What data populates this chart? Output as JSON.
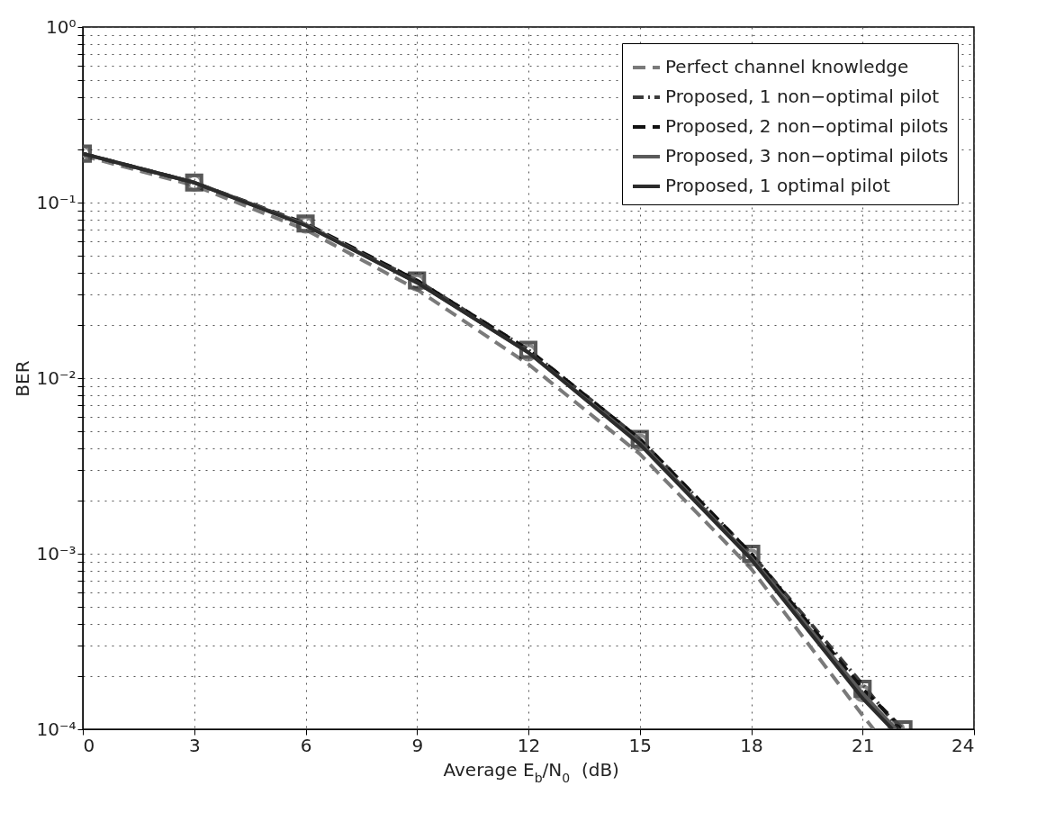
{
  "chart_data": {
    "type": "line",
    "xlabel": "Average E$_{b}$/N$_{0}$ (dB)",
    "ylabel": "BER",
    "xlim": [
      0,
      24
    ],
    "xticks": [
      0,
      3,
      6,
      9,
      12,
      15,
      18,
      21,
      24
    ],
    "ylim": [
      0.0001,
      1
    ],
    "log": "y",
    "yticks": [
      {
        "value": 0.0001,
        "label": "10⁻⁴"
      },
      {
        "value": 0.0002,
        "label": null
      },
      {
        "value": 0.0003,
        "label": null
      },
      {
        "value": 0.0004,
        "label": null
      },
      {
        "value": 0.0005,
        "label": null
      },
      {
        "value": 0.0006,
        "label": null
      },
      {
        "value": 0.0007,
        "label": null
      },
      {
        "value": 0.0008,
        "label": null
      },
      {
        "value": 0.0009,
        "label": null
      },
      {
        "value": 0.001,
        "label": "10⁻³"
      },
      {
        "value": 0.002,
        "label": null
      },
      {
        "value": 0.003,
        "label": null
      },
      {
        "value": 0.004,
        "label": null
      },
      {
        "value": 0.005,
        "label": null
      },
      {
        "value": 0.006,
        "label": null
      },
      {
        "value": 0.007,
        "label": null
      },
      {
        "value": 0.008,
        "label": null
      },
      {
        "value": 0.009,
        "label": null
      },
      {
        "value": 0.01,
        "label": "10⁻²"
      },
      {
        "value": 0.02,
        "label": null
      },
      {
        "value": 0.03,
        "label": null
      },
      {
        "value": 0.04,
        "label": null
      },
      {
        "value": 0.05,
        "label": null
      },
      {
        "value": 0.06,
        "label": null
      },
      {
        "value": 0.07,
        "label": null
      },
      {
        "value": 0.08,
        "label": null
      },
      {
        "value": 0.09,
        "label": null
      },
      {
        "value": 0.1,
        "label": "10⁻¹"
      },
      {
        "value": 0.2,
        "label": null
      },
      {
        "value": 0.3,
        "label": null
      },
      {
        "value": 0.4,
        "label": null
      },
      {
        "value": 0.5,
        "label": null
      },
      {
        "value": 0.6,
        "label": null
      },
      {
        "value": 0.7,
        "label": null
      },
      {
        "value": 0.8,
        "label": null
      },
      {
        "value": 0.9,
        "label": null
      },
      {
        "value": 1,
        "label": "10⁰"
      }
    ],
    "grid": true,
    "legend": "top right",
    "series": [
      {
        "name": "Perfect channel knowledge",
        "color": "#7a7a7a",
        "line_style": "dashed",
        "marker": "none",
        "x": [
          0,
          3,
          6,
          9,
          12,
          15,
          18,
          21,
          21.3
        ],
        "values": [
          0.185,
          0.125,
          0.07,
          0.032,
          0.012,
          0.0037,
          0.00082,
          0.00012,
          0.0001
        ]
      },
      {
        "name": "Proposed, 1 non−optimal pilot",
        "color": "#3c3c3c",
        "line_style": "dashdot",
        "marker": "none",
        "x": [
          0,
          3,
          6,
          9,
          12,
          15,
          18,
          21,
          22.0
        ],
        "values": [
          0.19,
          0.13,
          0.075,
          0.036,
          0.0145,
          0.0045,
          0.001,
          0.00018,
          0.0001
        ]
      },
      {
        "name": "Proposed, 2 non−optimal pilots",
        "color": "#111111",
        "line_style": "dashed",
        "marker": "square",
        "x": [
          0,
          3,
          6,
          9,
          12,
          15,
          18,
          21,
          22.1
        ],
        "values": [
          0.19,
          0.13,
          0.076,
          0.036,
          0.0145,
          0.0045,
          0.001,
          0.00017,
          0.0001
        ]
      },
      {
        "name": "Proposed, 3 non−optimal pilots",
        "color": "#5a5a5a",
        "line_style": "solid",
        "marker": "circle",
        "x": [
          0,
          3,
          6,
          9,
          12,
          15,
          18,
          21,
          21.9
        ],
        "values": [
          0.19,
          0.13,
          0.075,
          0.035,
          0.014,
          0.0043,
          0.00095,
          0.00016,
          0.0001
        ]
      },
      {
        "name": "Proposed, 1 optimal pilot",
        "color": "#2b2b2b",
        "line_style": "solid",
        "marker": "none",
        "x": [
          0,
          3,
          6,
          9,
          12,
          15,
          18,
          21,
          21.8
        ],
        "values": [
          0.19,
          0.13,
          0.074,
          0.035,
          0.014,
          0.0042,
          0.00093,
          0.00015,
          0.0001
        ]
      }
    ]
  }
}
